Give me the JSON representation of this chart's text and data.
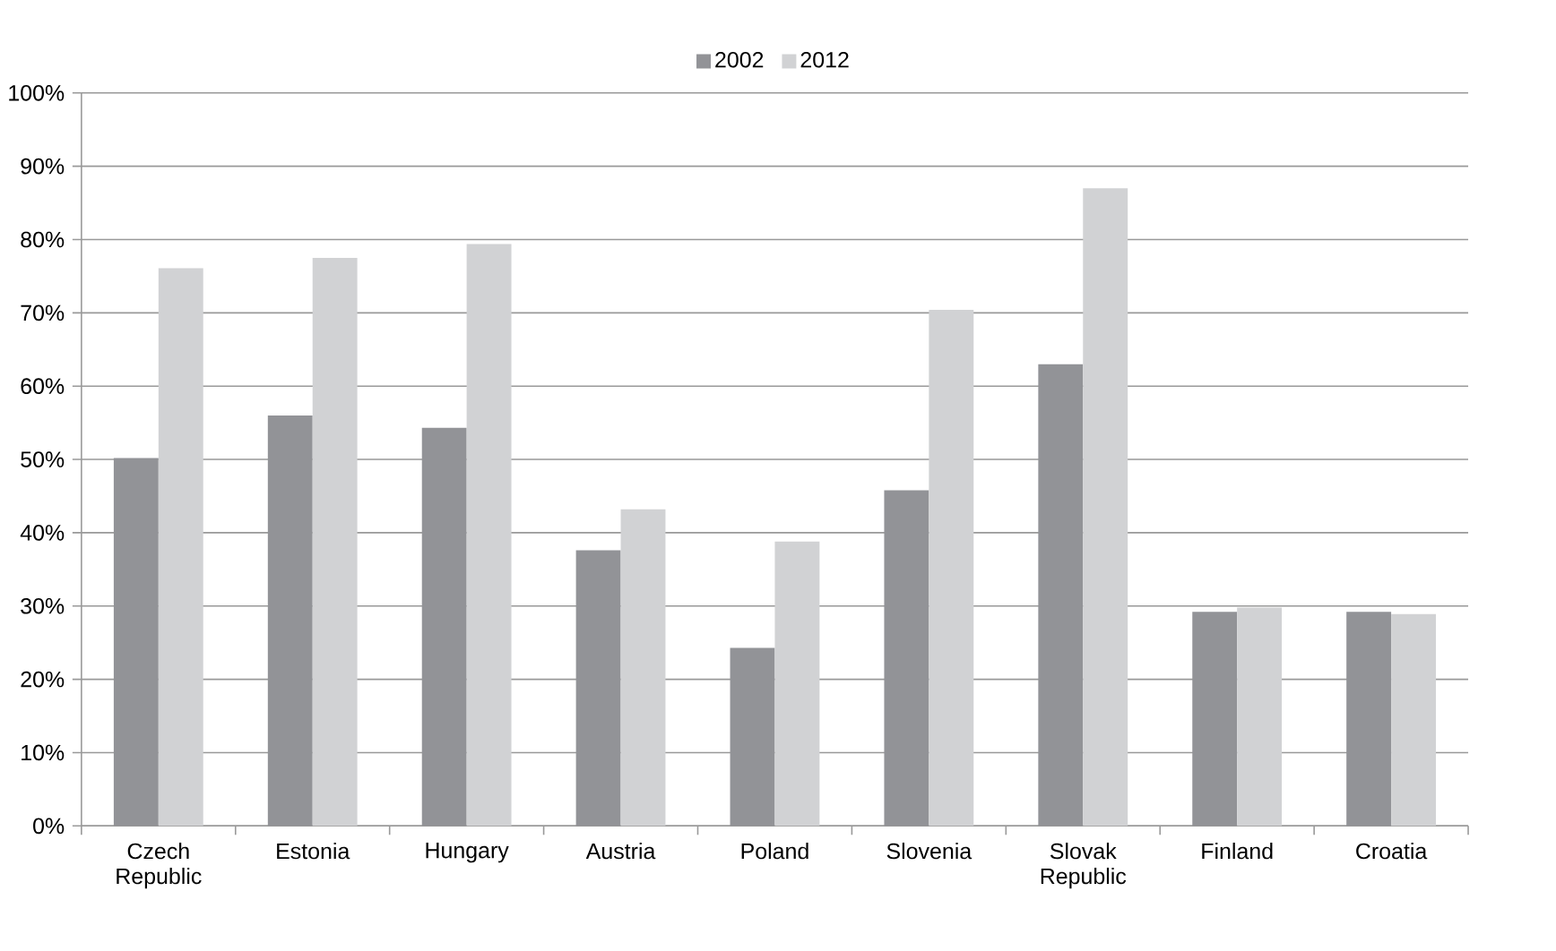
{
  "chart_data": {
    "type": "bar",
    "categories": [
      "Czech Republic",
      "Estonia",
      "Hungary",
      "Austria",
      "Poland",
      "Slovenia",
      "Slovak Republic",
      "Finland",
      "Croatia"
    ],
    "series": [
      {
        "name": "2002",
        "color": "#929397",
        "values": [
          50.2,
          56,
          54.3,
          37.6,
          24.3,
          45.8,
          63,
          29.2,
          29.2
        ]
      },
      {
        "name": "2012",
        "color": "#d1d2d4",
        "values": [
          76.1,
          77.5,
          79.4,
          43.2,
          38.8,
          70.4,
          87,
          29.8,
          28.9
        ]
      }
    ],
    "ylim": [
      0,
      100
    ],
    "yticks": [
      {
        "value": 0,
        "label": "0%"
      },
      {
        "value": 10,
        "label": "10%"
      },
      {
        "value": 20,
        "label": "20%"
      },
      {
        "value": 30,
        "label": "30%"
      },
      {
        "value": 40,
        "label": "40%"
      },
      {
        "value": 50,
        "label": "50%"
      },
      {
        "value": 60,
        "label": "60%"
      },
      {
        "value": 70,
        "label": "70%"
      },
      {
        "value": 80,
        "label": "80%"
      },
      {
        "value": 90,
        "label": "90%"
      },
      {
        "value": 100,
        "label": "100%"
      }
    ],
    "grid": "y",
    "legend": "top"
  }
}
